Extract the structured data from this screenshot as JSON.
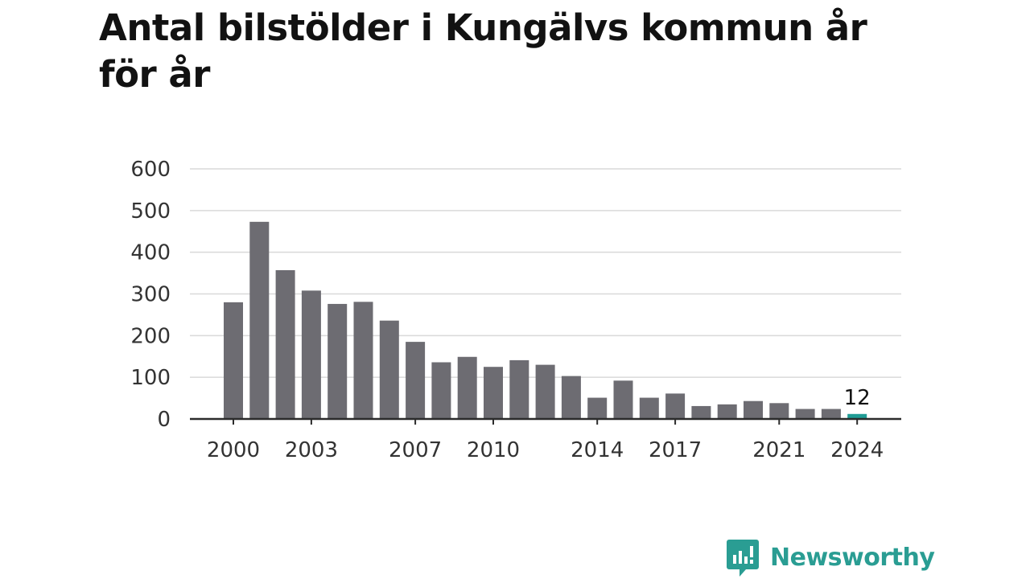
{
  "title": "Antal bilstölder i Kungälvs kommun år för år",
  "brand": {
    "name": "Newsworthy",
    "icon": "newsworthy-logo-icon",
    "color": "#2a9d93"
  },
  "colors": {
    "bar": "#6d6c72",
    "highlight": "#1f9c95",
    "grid": "#d9d9d9",
    "axis": "#2b2b2b",
    "tick_text": "#333333"
  },
  "chart_data": {
    "type": "bar",
    "x": [
      2000,
      2001,
      2002,
      2003,
      2004,
      2005,
      2006,
      2007,
      2008,
      2009,
      2010,
      2011,
      2012,
      2013,
      2014,
      2015,
      2016,
      2017,
      2018,
      2019,
      2020,
      2021,
      2022,
      2023,
      2024
    ],
    "values": [
      280,
      473,
      357,
      308,
      276,
      281,
      236,
      185,
      136,
      149,
      125,
      141,
      130,
      103,
      51,
      92,
      51,
      61,
      31,
      35,
      43,
      38,
      24,
      24,
      12
    ],
    "highlight_index": 24,
    "highlight_label": "12",
    "xticks": [
      "2000",
      "2003",
      "2007",
      "2010",
      "2014",
      "2017",
      "2021",
      "2024"
    ],
    "yticks": [
      "0",
      "100",
      "200",
      "300",
      "400",
      "500",
      "600"
    ],
    "ylim": [
      0,
      600
    ],
    "grid": true
  }
}
